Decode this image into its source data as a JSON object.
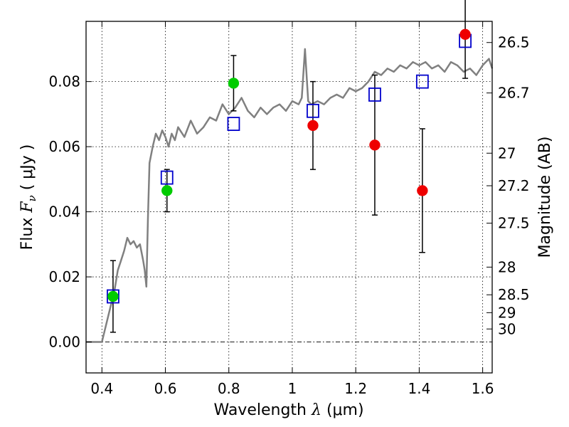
{
  "chart_data": {
    "type": "scatter",
    "xlabel": "Wavelength",
    "xlabel_math": "λ",
    "xlabel_unit": "(μm)",
    "ylabel": "Flux",
    "ylabel_math": "F",
    "ylabel_sub": "ν",
    "ylabel_unit": "( μJy )",
    "y2label": "Magnitude (AB)",
    "xlim": [
      0.35,
      1.63
    ],
    "ylim": [
      -0.0095,
      0.0985
    ],
    "grid": true,
    "legend": "none",
    "xticks": [
      {
        "value": 0.4,
        "label": "0.4"
      },
      {
        "value": 0.6,
        "label": "0.6"
      },
      {
        "value": 0.8,
        "label": "0.8"
      },
      {
        "value": 1.0,
        "label": "1"
      },
      {
        "value": 1.2,
        "label": "1.2"
      },
      {
        "value": 1.4,
        "label": "1.4"
      },
      {
        "value": 1.6,
        "label": "1.6"
      }
    ],
    "yticks": [
      {
        "value": 0.0,
        "label": "0.00"
      },
      {
        "value": 0.02,
        "label": "0.02"
      },
      {
        "value": 0.04,
        "label": "0.04"
      },
      {
        "value": 0.06,
        "label": "0.06"
      },
      {
        "value": 0.08,
        "label": "0.08"
      }
    ],
    "y2ticks": [
      {
        "flux": 0.092,
        "label": "26.5"
      },
      {
        "flux": 0.0765,
        "label": "26.7"
      },
      {
        "flux": 0.058,
        "label": "27"
      },
      {
        "flux": 0.048,
        "label": "27.2"
      },
      {
        "flux": 0.0365,
        "label": "27.5"
      },
      {
        "flux": 0.023,
        "label": "28"
      },
      {
        "flux": 0.0145,
        "label": "28.5"
      },
      {
        "flux": 0.009,
        "label": "29"
      },
      {
        "flux": 0.004,
        "label": "30"
      }
    ],
    "series": [
      {
        "name": "model spectrum",
        "type": "line",
        "color": "#808080",
        "x": [
          0.35,
          0.4,
          0.42,
          0.43,
          0.44,
          0.45,
          0.46,
          0.47,
          0.48,
          0.49,
          0.5,
          0.51,
          0.52,
          0.53,
          0.535,
          0.54,
          0.545,
          0.55,
          0.56,
          0.57,
          0.58,
          0.59,
          0.6,
          0.61,
          0.62,
          0.63,
          0.64,
          0.66,
          0.68,
          0.7,
          0.72,
          0.74,
          0.76,
          0.78,
          0.8,
          0.82,
          0.84,
          0.86,
          0.88,
          0.9,
          0.92,
          0.94,
          0.96,
          0.98,
          1.0,
          1.02,
          1.03,
          1.04,
          1.05,
          1.06,
          1.08,
          1.1,
          1.12,
          1.14,
          1.16,
          1.18,
          1.2,
          1.22,
          1.24,
          1.26,
          1.28,
          1.3,
          1.32,
          1.34,
          1.36,
          1.38,
          1.4,
          1.42,
          1.44,
          1.46,
          1.48,
          1.5,
          1.52,
          1.54,
          1.56,
          1.58,
          1.6,
          1.62,
          1.63
        ],
        "y": [
          0.0,
          0.0,
          0.008,
          0.012,
          0.016,
          0.022,
          0.025,
          0.028,
          0.032,
          0.03,
          0.031,
          0.029,
          0.03,
          0.025,
          0.022,
          0.017,
          0.038,
          0.055,
          0.06,
          0.064,
          0.062,
          0.065,
          0.063,
          0.06,
          0.064,
          0.062,
          0.066,
          0.063,
          0.068,
          0.064,
          0.066,
          0.069,
          0.068,
          0.073,
          0.07,
          0.072,
          0.075,
          0.071,
          0.069,
          0.072,
          0.07,
          0.072,
          0.073,
          0.071,
          0.074,
          0.073,
          0.075,
          0.09,
          0.074,
          0.073,
          0.074,
          0.073,
          0.075,
          0.076,
          0.075,
          0.078,
          0.077,
          0.078,
          0.08,
          0.083,
          0.082,
          0.084,
          0.083,
          0.085,
          0.084,
          0.086,
          0.085,
          0.086,
          0.084,
          0.085,
          0.083,
          0.086,
          0.085,
          0.083,
          0.084,
          0.082,
          0.085,
          0.087,
          0.084
        ]
      },
      {
        "name": "model photometry",
        "type": "scatter",
        "marker": "open-square",
        "color": "#0000cc",
        "x": [
          0.435,
          0.605,
          0.815,
          1.065,
          1.26,
          1.41,
          1.545
        ],
        "y": [
          0.014,
          0.0505,
          0.067,
          0.071,
          0.076,
          0.08,
          0.0925
        ]
      },
      {
        "name": "optical photometry",
        "type": "scatter",
        "marker": "filled-circle",
        "color": "#00cc00",
        "x": [
          0.435,
          0.605,
          0.815
        ],
        "y": [
          0.014,
          0.0465,
          0.0795
        ],
        "err": [
          0.011,
          0.0065,
          0.0085
        ]
      },
      {
        "name": "near-IR photometry",
        "type": "scatter",
        "marker": "filled-circle",
        "color": "#ee0000",
        "x": [
          1.065,
          1.26,
          1.41,
          1.545
        ],
        "y": [
          0.0665,
          0.0605,
          0.0465,
          0.0945
        ],
        "err": [
          0.0135,
          0.0215,
          0.019,
          0.0135
        ]
      }
    ]
  }
}
